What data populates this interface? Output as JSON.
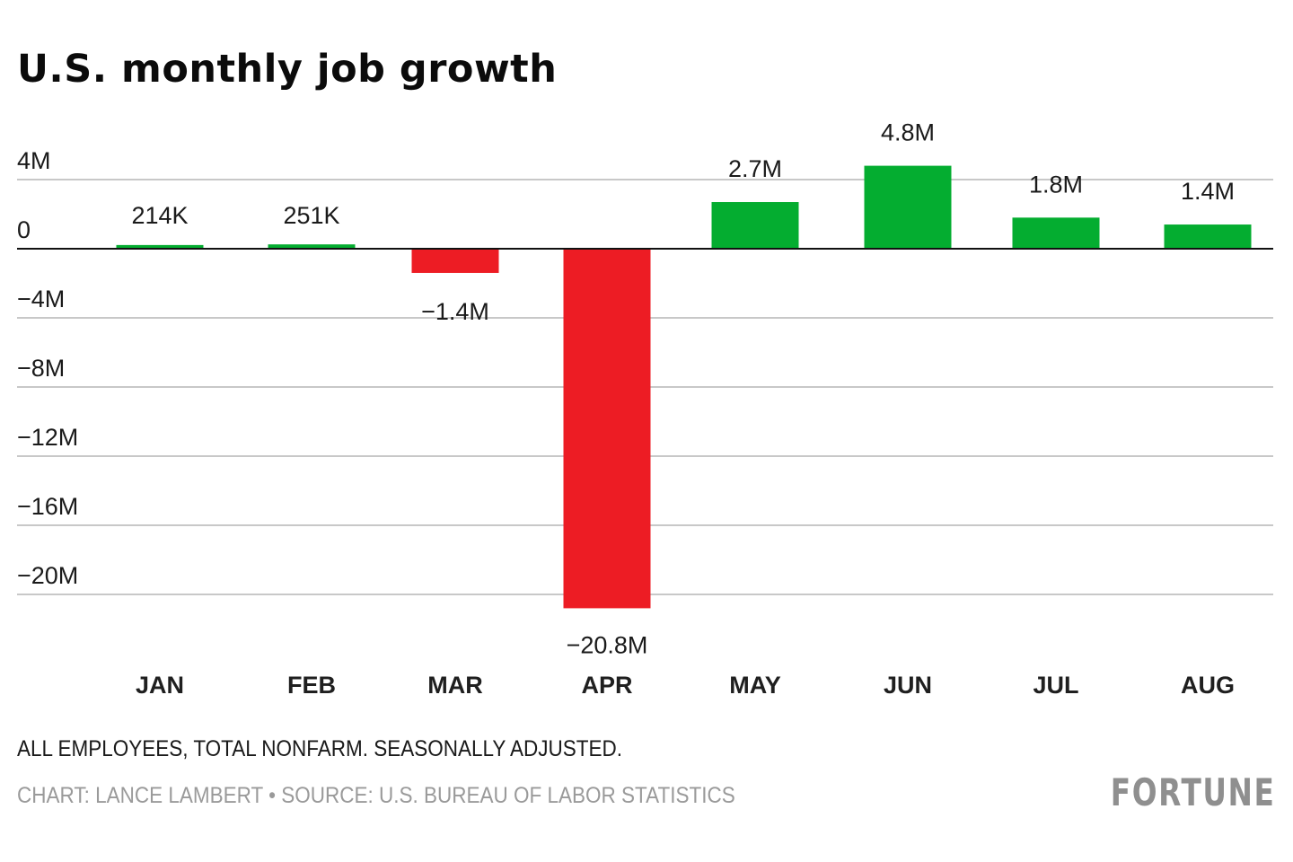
{
  "chart_data": {
    "type": "bar",
    "title": "U.S. monthly job growth",
    "xlabel": "",
    "ylabel": "",
    "categories": [
      "JAN",
      "FEB",
      "MAR",
      "APR",
      "MAY",
      "JUN",
      "JUL",
      "AUG"
    ],
    "values": [
      0.214,
      0.251,
      -1.4,
      -20.8,
      2.7,
      4.8,
      1.8,
      1.4
    ],
    "value_labels": [
      "214K",
      "251K",
      "−1.4M",
      "−20.8M",
      "2.7M",
      "4.8M",
      "1.8M",
      "1.4M"
    ],
    "units": "millions of jobs",
    "ylim": [
      -21,
      5
    ],
    "yticks": [
      4,
      0,
      -4,
      -8,
      -12,
      -16,
      -20
    ],
    "ytick_labels": [
      "4M",
      "0",
      "−4M",
      "−8M",
      "−12M",
      "−16M",
      "−20M"
    ],
    "grid": true,
    "colors": {
      "positive": "#04ad30",
      "negative": "#ed1c24",
      "grid": "#c8c8c8",
      "zero_line": "#111111"
    }
  },
  "note": "ALL EMPLOYEES, TOTAL NONFARM. SEASONALLY ADJUSTED.",
  "credit": "CHART: LANCE LAMBERT • SOURCE: U.S. BUREAU OF LABOR STATISTICS",
  "brand": "FORTUNE"
}
